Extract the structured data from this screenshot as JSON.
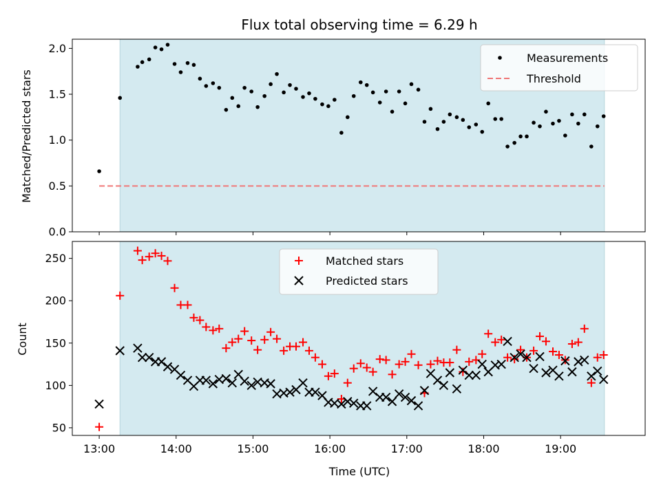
{
  "chart_data": [
    {
      "type": "scatter",
      "title": "Flux total observing time = 6.29 h",
      "ylabel": "Matched/Predicted stars",
      "xlabel": "",
      "ylim": [
        0,
        2.1
      ],
      "yticks": [
        "0.0",
        "0.5",
        "1.0",
        "1.5",
        "2.0"
      ],
      "xlim_hours": [
        12.65,
        20.1
      ],
      "shaded_span_hours": [
        13.27,
        19.57
      ],
      "shade_color": "#d4eaf0",
      "legend_position": "upper right",
      "threshold": {
        "name": "Threshold",
        "y": 0.5,
        "x_start_hours": 13.0,
        "x_end_hours": 19.57,
        "color": "#f07575",
        "style": "dashed"
      },
      "series": [
        {
          "name": "Measurements",
          "marker": "dot",
          "color": "#000000",
          "x_hours": [
            13.0,
            13.27,
            13.5,
            13.56,
            13.65,
            13.73,
            13.81,
            13.89,
            13.98,
            14.06,
            14.15,
            14.23,
            14.31,
            14.39,
            14.48,
            14.56,
            14.65,
            14.73,
            14.81,
            14.89,
            14.98,
            15.06,
            15.15,
            15.23,
            15.31,
            15.4,
            15.48,
            15.56,
            15.65,
            15.73,
            15.81,
            15.9,
            15.98,
            16.06,
            16.15,
            16.23,
            16.31,
            16.4,
            16.48,
            16.56,
            16.65,
            16.73,
            16.81,
            16.9,
            16.98,
            17.06,
            17.15,
            17.23,
            17.31,
            17.4,
            17.48,
            17.56,
            17.65,
            17.73,
            17.81,
            17.9,
            17.98,
            18.06,
            18.15,
            18.23,
            18.31,
            18.4,
            18.48,
            18.56,
            18.65,
            18.73,
            18.81,
            18.9,
            18.98,
            19.06,
            19.15,
            19.23,
            19.31,
            19.4,
            19.48,
            19.56
          ],
          "values": [
            0.66,
            1.46,
            1.8,
            1.85,
            1.88,
            2.01,
            1.99,
            2.04,
            1.83,
            1.74,
            1.84,
            1.82,
            1.67,
            1.59,
            1.62,
            1.57,
            1.33,
            1.46,
            1.37,
            1.57,
            1.53,
            1.36,
            1.48,
            1.61,
            1.72,
            1.52,
            1.6,
            1.56,
            1.47,
            1.51,
            1.45,
            1.39,
            1.37,
            1.44,
            1.08,
            1.25,
            1.48,
            1.63,
            1.6,
            1.52,
            1.41,
            1.53,
            1.31,
            1.53,
            1.4,
            1.61,
            1.55,
            1.2,
            1.34,
            1.12,
            1.2,
            1.28,
            1.25,
            1.22,
            1.14,
            1.17,
            1.09,
            1.4,
            1.23,
            1.23,
            0.93,
            0.97,
            1.04,
            1.04,
            1.19,
            1.15,
            1.31,
            1.18,
            1.21,
            1.05,
            1.28,
            1.18,
            1.28,
            0.93,
            1.15,
            1.26
          ]
        }
      ]
    },
    {
      "type": "scatter",
      "title": "",
      "ylabel": "Count",
      "xlabel": "Time (UTC)",
      "ylim": [
        41,
        270
      ],
      "yticks": [
        "50",
        "100",
        "150",
        "200",
        "250"
      ],
      "xticks": [
        "13:00",
        "14:00",
        "15:00",
        "16:00",
        "17:00",
        "18:00",
        "19:00"
      ],
      "xlim_hours": [
        12.65,
        20.1
      ],
      "shaded_span_hours": [
        13.27,
        19.57
      ],
      "legend_position": "upper center",
      "series": [
        {
          "name": "Matched stars",
          "marker": "plus",
          "color": "#ff0000",
          "x_hours": [
            13.0,
            13.27,
            13.5,
            13.56,
            13.65,
            13.73,
            13.81,
            13.89,
            13.98,
            14.06,
            14.15,
            14.23,
            14.31,
            14.39,
            14.48,
            14.56,
            14.65,
            14.73,
            14.81,
            14.89,
            14.98,
            15.06,
            15.15,
            15.23,
            15.31,
            15.4,
            15.48,
            15.56,
            15.65,
            15.73,
            15.81,
            15.9,
            15.98,
            16.06,
            16.15,
            16.23,
            16.31,
            16.4,
            16.48,
            16.56,
            16.65,
            16.73,
            16.81,
            16.9,
            16.98,
            17.06,
            17.15,
            17.23,
            17.31,
            17.4,
            17.48,
            17.56,
            17.65,
            17.73,
            17.81,
            17.9,
            17.98,
            18.06,
            18.15,
            18.23,
            18.31,
            18.4,
            18.48,
            18.56,
            18.65,
            18.73,
            18.81,
            18.9,
            18.98,
            19.06,
            19.15,
            19.23,
            19.31,
            19.4,
            19.48,
            19.56
          ],
          "values": [
            51,
            206,
            259,
            248,
            252,
            256,
            253,
            247,
            215,
            195,
            195,
            180,
            177,
            169,
            165,
            167,
            144,
            151,
            155,
            164,
            153,
            142,
            154,
            163,
            155,
            141,
            146,
            146,
            151,
            141,
            133,
            125,
            111,
            114,
            84,
            103,
            120,
            126,
            121,
            116,
            131,
            130,
            113,
            125,
            128,
            137,
            124,
            91,
            125,
            129,
            127,
            127,
            142,
            116,
            128,
            130,
            137,
            161,
            151,
            154,
            133,
            131,
            142,
            133,
            141,
            158,
            152,
            140,
            136,
            130,
            149,
            151,
            167,
            103,
            133,
            136
          ]
        },
        {
          "name": "Predicted stars",
          "marker": "x",
          "color": "#000000",
          "x_hours": [
            13.0,
            13.27,
            13.5,
            13.56,
            13.65,
            13.73,
            13.81,
            13.89,
            13.98,
            14.06,
            14.15,
            14.23,
            14.31,
            14.39,
            14.48,
            14.56,
            14.65,
            14.73,
            14.81,
            14.89,
            14.98,
            15.06,
            15.15,
            15.23,
            15.31,
            15.4,
            15.48,
            15.56,
            15.65,
            15.73,
            15.81,
            15.9,
            15.98,
            16.06,
            16.15,
            16.23,
            16.31,
            16.4,
            16.48,
            16.56,
            16.65,
            16.73,
            16.81,
            16.9,
            16.98,
            17.06,
            17.15,
            17.23,
            17.31,
            17.4,
            17.48,
            17.56,
            17.65,
            17.73,
            17.81,
            17.9,
            17.98,
            18.06,
            18.15,
            18.23,
            18.31,
            18.4,
            18.48,
            18.56,
            18.65,
            18.73,
            18.81,
            18.9,
            18.98,
            19.06,
            19.15,
            19.23,
            19.31,
            19.4,
            19.48,
            19.56
          ],
          "values": [
            78,
            141,
            144,
            133,
            133,
            128,
            128,
            122,
            119,
            112,
            106,
            99,
            106,
            106,
            102,
            107,
            108,
            103,
            113,
            105,
            100,
            104,
            103,
            102,
            90,
            91,
            92,
            95,
            103,
            92,
            92,
            88,
            80,
            79,
            78,
            81,
            79,
            76,
            76,
            93,
            86,
            86,
            81,
            90,
            86,
            82,
            76,
            94,
            114,
            106,
            100,
            115,
            96,
            118,
            112,
            112,
            125,
            116,
            124,
            125,
            152,
            133,
            137,
            133,
            120,
            134,
            115,
            118,
            111,
            129,
            116,
            128,
            130,
            111,
            117,
            107
          ]
        }
      ]
    }
  ]
}
